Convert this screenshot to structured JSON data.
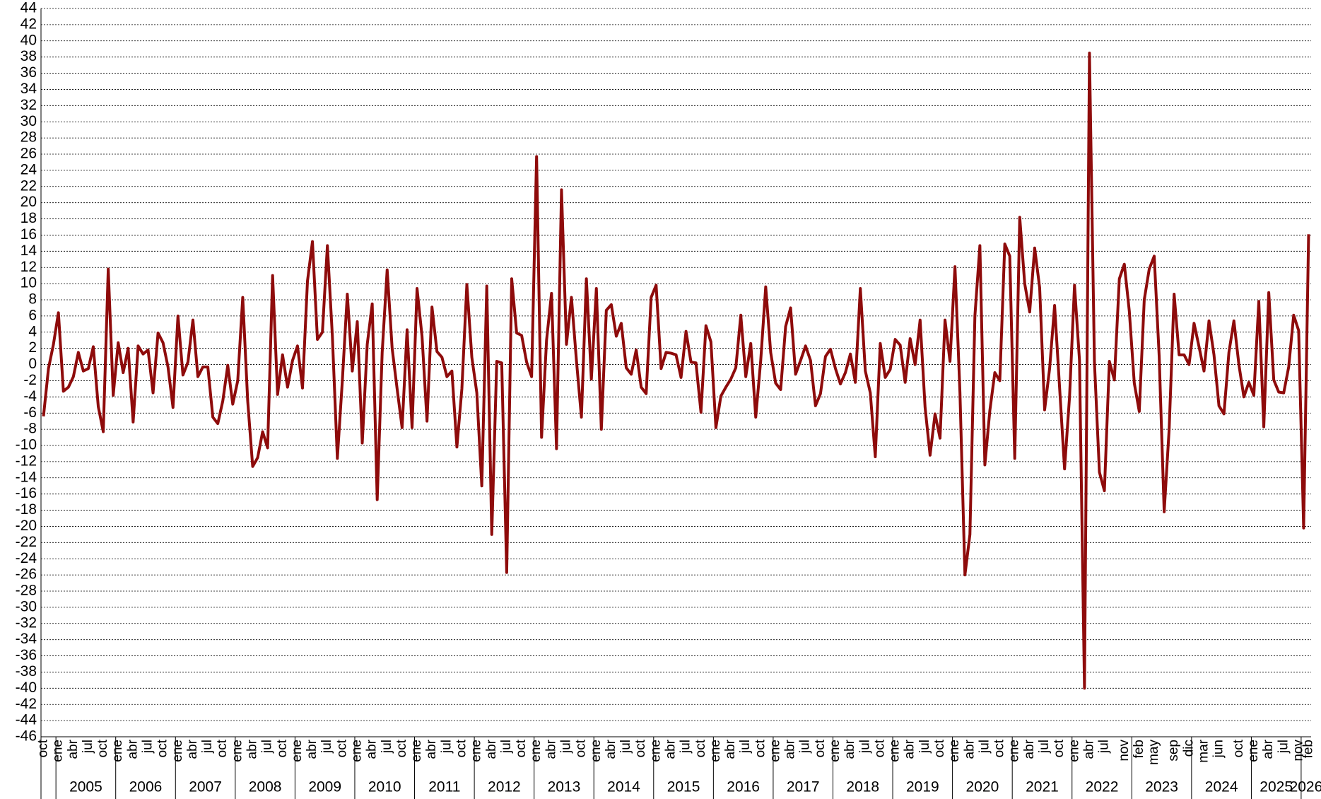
{
  "chart_data": {
    "type": "line",
    "color": "#8e0b0b",
    "grid": true,
    "ylim": [
      -46,
      44
    ],
    "yticks": [
      -46,
      -44,
      -42,
      -40,
      -38,
      -36,
      -34,
      -32,
      -30,
      -28,
      -26,
      -24,
      -22,
      -20,
      -18,
      -16,
      -14,
      -12,
      -10,
      -8,
      -6,
      -4,
      -2,
      0,
      2,
      4,
      6,
      8,
      10,
      12,
      14,
      16,
      18,
      20,
      22,
      24,
      26,
      28,
      30,
      32,
      34,
      36,
      38,
      40,
      42,
      44
    ],
    "groups": [
      {
        "label": null,
        "size": 3
      },
      {
        "label": "2005",
        "size": 12
      },
      {
        "label": "2006",
        "size": 12
      },
      {
        "label": "2007",
        "size": 12
      },
      {
        "label": "2008",
        "size": 12
      },
      {
        "label": "2009",
        "size": 12
      },
      {
        "label": "2010",
        "size": 12
      },
      {
        "label": "2011",
        "size": 12
      },
      {
        "label": "2012",
        "size": 12
      },
      {
        "label": "2013",
        "size": 12
      },
      {
        "label": "2014",
        "size": 12
      },
      {
        "label": "2015",
        "size": 12
      },
      {
        "label": "2016",
        "size": 12
      },
      {
        "label": "2017",
        "size": 12
      },
      {
        "label": "2018",
        "size": 12
      },
      {
        "label": "2019",
        "size": 12
      },
      {
        "label": "2020",
        "size": 12
      },
      {
        "label": "2021",
        "size": 12
      },
      {
        "label": "2022",
        "size": 12
      },
      {
        "label": "2023",
        "size": 12
      },
      {
        "label": "2024",
        "size": 12
      },
      {
        "label": "2025",
        "size": 10
      },
      {
        "label": "2026",
        "size": 2
      }
    ],
    "categories": [
      "oct",
      null,
      null,
      "ene",
      null,
      null,
      "abr",
      null,
      null,
      "jul",
      null,
      null,
      "oct",
      null,
      null,
      "ene",
      null,
      null,
      "abr",
      null,
      null,
      "jul",
      null,
      null,
      "oct",
      null,
      null,
      "ene",
      null,
      null,
      "abr",
      null,
      null,
      "jul",
      null,
      null,
      "oct",
      null,
      null,
      "ene",
      null,
      null,
      "abr",
      null,
      null,
      "jul",
      null,
      null,
      "oct",
      null,
      null,
      "ene",
      null,
      null,
      "abr",
      null,
      null,
      "jul",
      null,
      null,
      "oct",
      null,
      null,
      "ene",
      null,
      null,
      "abr",
      null,
      null,
      "jul",
      null,
      null,
      "oct",
      null,
      null,
      "ene",
      null,
      null,
      "abr",
      null,
      null,
      "jul",
      null,
      null,
      "oct",
      null,
      null,
      "ene",
      null,
      null,
      "abr",
      null,
      null,
      "jul",
      null,
      null,
      "oct",
      null,
      null,
      "ene",
      null,
      null,
      "abr",
      null,
      null,
      "jul",
      null,
      null,
      "oct",
      null,
      null,
      "ene",
      null,
      null,
      "abr",
      null,
      null,
      "jul",
      null,
      null,
      "oct",
      null,
      null,
      "ene",
      null,
      null,
      "abr",
      null,
      null,
      "jul",
      null,
      null,
      "oct",
      null,
      null,
      "ene",
      null,
      null,
      "abr",
      null,
      null,
      "jul",
      null,
      null,
      "oct",
      null,
      null,
      "ene",
      null,
      null,
      "abr",
      null,
      null,
      "jul",
      null,
      null,
      "oct",
      null,
      null,
      "ene",
      null,
      null,
      "abr",
      null,
      null,
      "jul",
      null,
      null,
      "oct",
      null,
      null,
      "ene",
      null,
      null,
      "abr",
      null,
      null,
      "jul",
      null,
      null,
      "oct",
      null,
      null,
      "ene",
      null,
      null,
      "abr",
      null,
      null,
      "jul",
      null,
      null,
      "oct",
      null,
      null,
      "ene",
      null,
      null,
      "abr",
      null,
      null,
      "jul",
      null,
      null,
      "oct",
      null,
      null,
      "ene",
      null,
      null,
      "abr",
      null,
      null,
      "jul",
      null,
      null,
      null,
      "nov",
      null,
      null,
      "feb",
      null,
      null,
      "may",
      null,
      null,
      null,
      "sep",
      null,
      null,
      "dic",
      null,
      null,
      "mar",
      null,
      null,
      "jun",
      null,
      null,
      null,
      "oct",
      null,
      null,
      "ene",
      null,
      null,
      "abr",
      null,
      null,
      "jul",
      null,
      null,
      "nov",
      null,
      "feb"
    ],
    "values": [
      -6.4,
      -0.5,
      2.5,
      6.4,
      -3.3,
      -2.8,
      -1.5,
      1.5,
      -0.8,
      -0.5,
      2.2,
      -5.2,
      -8.3,
      11.8,
      -3.8,
      2.7,
      -1.0,
      2.0,
      -7.1,
      2.3,
      1.3,
      1.8,
      -3.5,
      3.9,
      2.7,
      -0.3,
      -5.3,
      6.0,
      -1.3,
      0.3,
      5.5,
      -1.5,
      -0.3,
      -0.3,
      -6.5,
      -7.3,
      -4.5,
      -0.1,
      -4.9,
      -2.0,
      8.3,
      -4.5,
      -12.6,
      -11.5,
      -8.3,
      -10.3,
      11.0,
      -3.7,
      1.2,
      -2.8,
      0.5,
      2.3,
      -2.9,
      10.3,
      15.2,
      3.1,
      4.0,
      14.7,
      3.5,
      -11.6,
      -2.0,
      8.7,
      -0.8,
      5.3,
      -9.7,
      2.5,
      7.5,
      -16.7,
      1.5,
      11.7,
      2.0,
      -3.0,
      -7.8,
      4.3,
      -7.8,
      9.4,
      3.5,
      -7.0,
      7.1,
      1.6,
      0.9,
      -1.5,
      -0.8,
      -10.2,
      -3.0,
      9.9,
      0.9,
      -3.5,
      -15.0,
      9.7,
      -21.0,
      0.4,
      0.2,
      -25.7,
      10.6,
      3.9,
      3.6,
      0.3,
      -1.5,
      25.7,
      -9.0,
      3.0,
      8.8,
      -10.4,
      21.6,
      2.5,
      8.3,
      0.5,
      -6.5,
      10.6,
      -1.8,
      9.4,
      -8.0,
      6.7,
      7.4,
      3.5,
      5.1,
      -0.4,
      -1.2,
      1.8,
      -2.8,
      -3.6,
      8.3,
      9.8,
      -0.5,
      1.5,
      1.4,
      1.2,
      -1.6,
      4.1,
      0.3,
      0.2,
      -5.9,
      4.8,
      2.8,
      -7.8,
      -3.9,
      -2.8,
      -1.8,
      -0.4,
      6.1,
      -1.5,
      2.6,
      -6.5,
      0.5,
      9.6,
      1.5,
      -2.3,
      -3.1,
      4.7,
      7.0,
      -1.2,
      0.5,
      2.3,
      0.5,
      -5.1,
      -3.6,
      1.0,
      1.9,
      -0.5,
      -2.4,
      -1.0,
      1.3,
      -2.2,
      9.4,
      -0.8,
      -3.5,
      -11.4,
      2.6,
      -1.6,
      -0.6,
      3.1,
      2.4,
      -2.2,
      3.2,
      0.0,
      5.5,
      -5.3,
      -11.2,
      -6.1,
      -9.1,
      5.5,
      0.4,
      12.1,
      -3.5,
      -26.0,
      -21.0,
      6.0,
      14.7,
      -12.4,
      -5.7,
      -1.0,
      -2.0,
      14.9,
      13.4,
      -11.6,
      18.2,
      10.0,
      6.5,
      14.4,
      9.5,
      -5.6,
      -0.5,
      7.3,
      -2.8,
      -12.9,
      -4.0,
      9.8,
      0.5,
      -40.0,
      38.5,
      0.3,
      -13.3,
      -15.6,
      0.4,
      -1.9,
      10.6,
      12.4,
      6.6,
      -2.3,
      -5.8,
      8.0,
      11.8,
      13.4,
      1.0,
      -18.2,
      -8.0,
      8.7,
      1.2,
      1.2,
      0.0,
      5.1,
      2.2,
      -0.8,
      5.4,
      1.2,
      -5.1,
      -6.1,
      1.5,
      5.4,
      0.0,
      -4.0,
      -2.2,
      -3.8,
      7.8,
      -7.7,
      8.9,
      -1.9,
      -3.4,
      -3.5,
      -0.3,
      6.1,
      4.2,
      -20.2,
      16.1
    ]
  }
}
